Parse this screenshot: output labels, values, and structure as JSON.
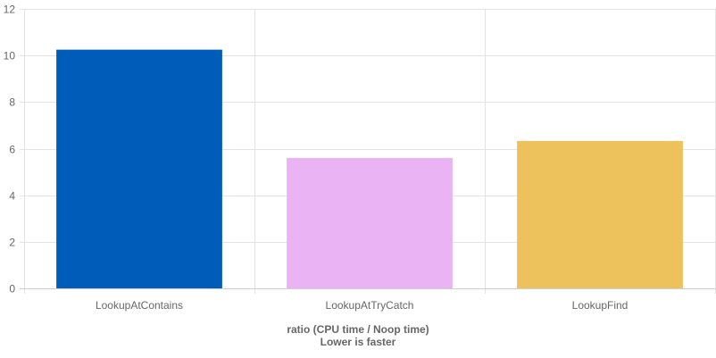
{
  "chart_data": {
    "type": "bar",
    "categories": [
      "LookupAtContains",
      "LookupAtTryCatch",
      "LookupFind"
    ],
    "values": [
      10.25,
      5.6,
      6.33
    ],
    "colors": [
      "#005cb9",
      "#e9b3f4",
      "#edc15b"
    ],
    "title": "",
    "xlabel_lines": [
      "ratio (CPU time / Noop time)",
      "Lower is faster"
    ],
    "ylabel": "",
    "ylim": [
      0,
      12
    ],
    "yticks": [
      0,
      2,
      4,
      6,
      8,
      10,
      12
    ],
    "grid": true,
    "legend": "none"
  }
}
